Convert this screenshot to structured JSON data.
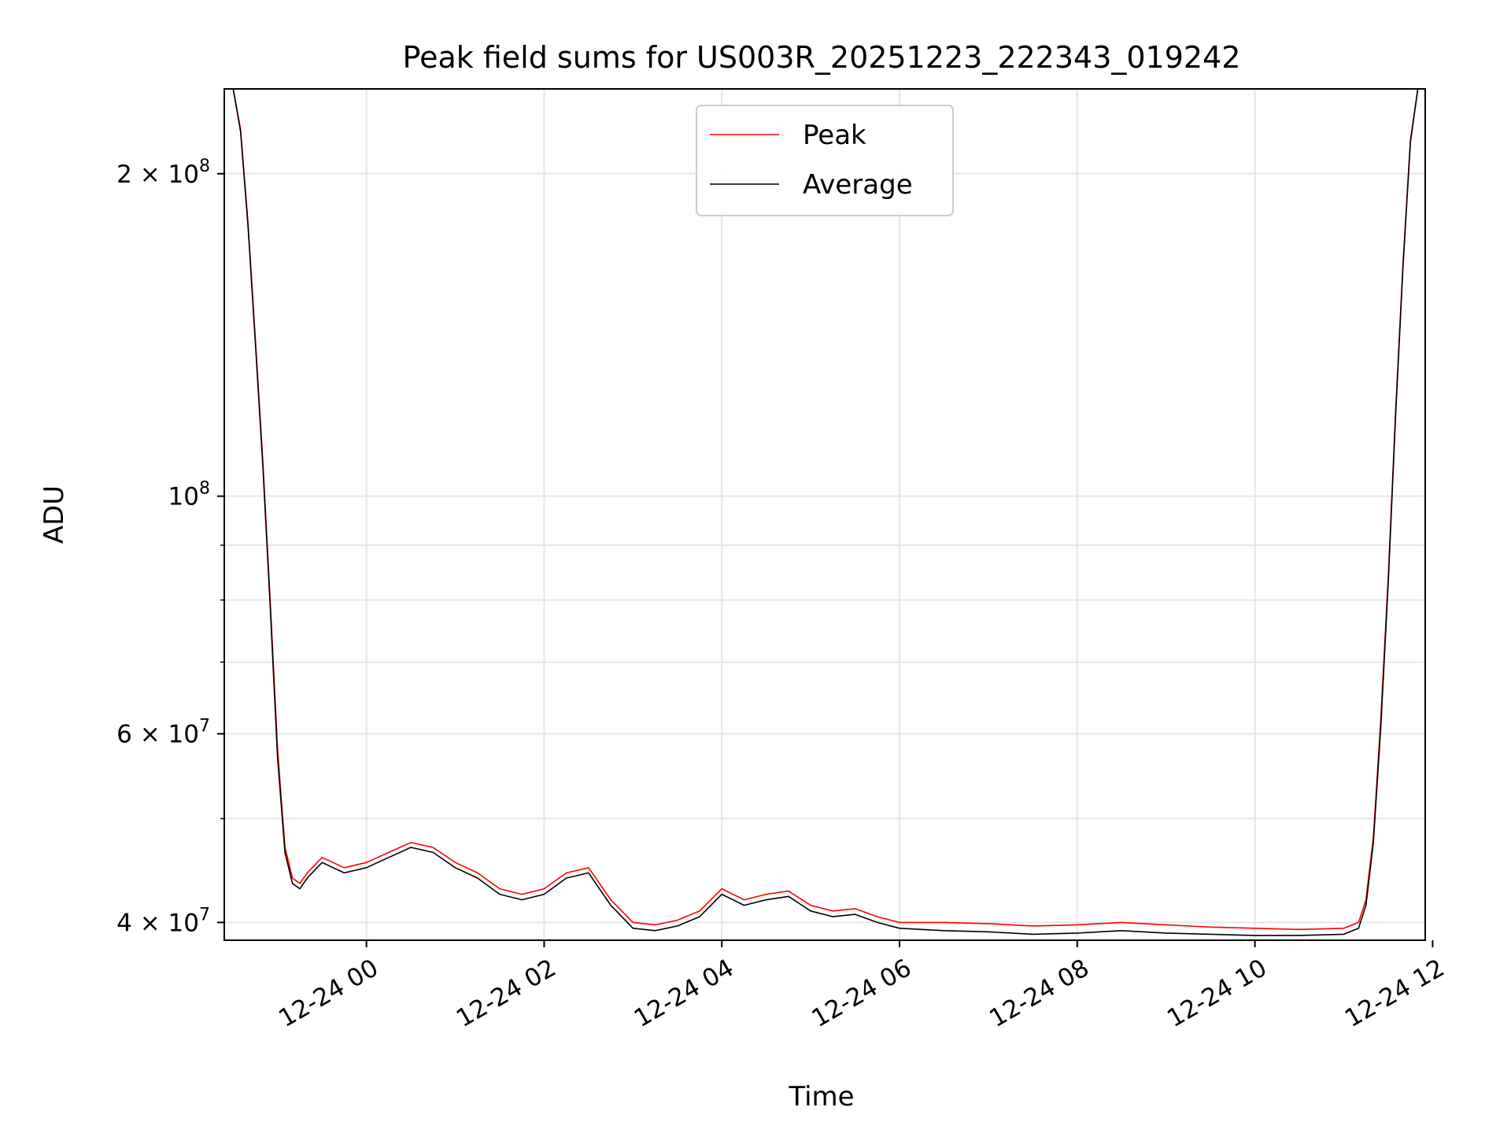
{
  "figure": {
    "title": "Peak field sums for US003R_20251223_222343_019242"
  },
  "chart_data": {
    "type": "line",
    "title": "Peak field sums for US003R_20251223_222343_019242",
    "xlabel": "Time",
    "ylabel": "ADU",
    "x_scale": "time",
    "y_scale": "log",
    "xlim": [
      "2025-12-23 22:24",
      "2025-12-24 11:55"
    ],
    "ylim": [
      38500000,
      240000000
    ],
    "grid": true,
    "legend_position": "upper center",
    "x_ticks": [
      {
        "value": "2025-12-24 00:00",
        "label": "12-24 00"
      },
      {
        "value": "2025-12-24 02:00",
        "label": "12-24 02"
      },
      {
        "value": "2025-12-24 04:00",
        "label": "12-24 04"
      },
      {
        "value": "2025-12-24 06:00",
        "label": "12-24 06"
      },
      {
        "value": "2025-12-24 08:00",
        "label": "12-24 08"
      },
      {
        "value": "2025-12-24 10:00",
        "label": "12-24 10"
      },
      {
        "value": "2025-12-24 12:00",
        "label": "12-24 12"
      }
    ],
    "y_ticks": [
      {
        "value": 40000000,
        "base": "4 × 10",
        "exp": "7"
      },
      {
        "value": 60000000,
        "base": "6 × 10",
        "exp": "7"
      },
      {
        "value": 100000000,
        "base": "10",
        "exp": "8"
      },
      {
        "value": 200000000,
        "base": "2 × 10",
        "exp": "8"
      }
    ],
    "y_minor_ticks": [
      50000000,
      70000000,
      80000000,
      90000000
    ],
    "series": [
      {
        "name": "Peak",
        "color": "#ff0000",
        "x": [
          "2025-12-23 22:24",
          "2025-12-23 22:30",
          "2025-12-23 22:35",
          "2025-12-23 22:40",
          "2025-12-23 22:45",
          "2025-12-23 22:50",
          "2025-12-23 22:55",
          "2025-12-23 23:00",
          "2025-12-23 23:05",
          "2025-12-23 23:10",
          "2025-12-23 23:15",
          "2025-12-23 23:20",
          "2025-12-23 23:30",
          "2025-12-23 23:45",
          "2025-12-24 00:00",
          "2025-12-24 00:15",
          "2025-12-24 00:30",
          "2025-12-24 00:45",
          "2025-12-24 01:00",
          "2025-12-24 01:15",
          "2025-12-24 01:30",
          "2025-12-24 01:45",
          "2025-12-24 02:00",
          "2025-12-24 02:15",
          "2025-12-24 02:30",
          "2025-12-24 02:45",
          "2025-12-24 03:00",
          "2025-12-24 03:15",
          "2025-12-24 03:30",
          "2025-12-24 03:45",
          "2025-12-24 04:00",
          "2025-12-24 04:15",
          "2025-12-24 04:30",
          "2025-12-24 04:45",
          "2025-12-24 05:00",
          "2025-12-24 05:15",
          "2025-12-24 05:30",
          "2025-12-24 05:45",
          "2025-12-24 06:00",
          "2025-12-24 06:30",
          "2025-12-24 07:00",
          "2025-12-24 07:30",
          "2025-12-24 08:00",
          "2025-12-24 08:30",
          "2025-12-24 09:00",
          "2025-12-24 09:30",
          "2025-12-24 10:00",
          "2025-12-24 10:30",
          "2025-12-24 11:00",
          "2025-12-24 11:10",
          "2025-12-24 11:15",
          "2025-12-24 11:20",
          "2025-12-24 11:25",
          "2025-12-24 11:30",
          "2025-12-24 11:35",
          "2025-12-24 11:40",
          "2025-12-24 11:45",
          "2025-12-24 11:50",
          "2025-12-24 11:55"
        ],
        "values": [
          240000000,
          240000000,
          220000000,
          180000000,
          140000000,
          108000000,
          80000000,
          58000000,
          47000000,
          44000000,
          43500000,
          44500000,
          46000000,
          45000000,
          45500000,
          46500000,
          47500000,
          47000000,
          45500000,
          44500000,
          43000000,
          42500000,
          43000000,
          44500000,
          45000000,
          42000000,
          40000000,
          39800000,
          40200000,
          41000000,
          43000000,
          42000000,
          42500000,
          42800000,
          41500000,
          41000000,
          41200000,
          40500000,
          40000000,
          40000000,
          39900000,
          39700000,
          39800000,
          40000000,
          39800000,
          39600000,
          39500000,
          39400000,
          39500000,
          40000000,
          42000000,
          48000000,
          62000000,
          84000000,
          120000000,
          165000000,
          215000000,
          240000000,
          240000000
        ]
      },
      {
        "name": "Average",
        "color": "#000000",
        "x": [
          "2025-12-23 22:24",
          "2025-12-23 22:30",
          "2025-12-23 22:35",
          "2025-12-23 22:40",
          "2025-12-23 22:45",
          "2025-12-23 22:50",
          "2025-12-23 22:55",
          "2025-12-23 23:00",
          "2025-12-23 23:05",
          "2025-12-23 23:10",
          "2025-12-23 23:15",
          "2025-12-23 23:20",
          "2025-12-23 23:30",
          "2025-12-23 23:45",
          "2025-12-24 00:00",
          "2025-12-24 00:15",
          "2025-12-24 00:30",
          "2025-12-24 00:45",
          "2025-12-24 01:00",
          "2025-12-24 01:15",
          "2025-12-24 01:30",
          "2025-12-24 01:45",
          "2025-12-24 02:00",
          "2025-12-24 02:15",
          "2025-12-24 02:30",
          "2025-12-24 02:45",
          "2025-12-24 03:00",
          "2025-12-24 03:15",
          "2025-12-24 03:30",
          "2025-12-24 03:45",
          "2025-12-24 04:00",
          "2025-12-24 04:15",
          "2025-12-24 04:30",
          "2025-12-24 04:45",
          "2025-12-24 05:00",
          "2025-12-24 05:15",
          "2025-12-24 05:30",
          "2025-12-24 05:45",
          "2025-12-24 06:00",
          "2025-12-24 06:30",
          "2025-12-24 07:00",
          "2025-12-24 07:30",
          "2025-12-24 08:00",
          "2025-12-24 08:30",
          "2025-12-24 09:00",
          "2025-12-24 09:30",
          "2025-12-24 10:00",
          "2025-12-24 10:30",
          "2025-12-24 11:00",
          "2025-12-24 11:10",
          "2025-12-24 11:15",
          "2025-12-24 11:20",
          "2025-12-24 11:25",
          "2025-12-24 11:30",
          "2025-12-24 11:35",
          "2025-12-24 11:40",
          "2025-12-24 11:45",
          "2025-12-24 11:50",
          "2025-12-24 11:55"
        ],
        "values": [
          240000000,
          240000000,
          219000000,
          179000000,
          139000000,
          107000000,
          79000000,
          57000000,
          46500000,
          43500000,
          43000000,
          44000000,
          45500000,
          44500000,
          45000000,
          46000000,
          47000000,
          46500000,
          45000000,
          44000000,
          42500000,
          42000000,
          42500000,
          44000000,
          44500000,
          41500000,
          39500000,
          39300000,
          39700000,
          40500000,
          42500000,
          41500000,
          42000000,
          42300000,
          41000000,
          40500000,
          40700000,
          40000000,
          39500000,
          39300000,
          39200000,
          39000000,
          39100000,
          39300000,
          39100000,
          39000000,
          38900000,
          38900000,
          39000000,
          39500000,
          41500000,
          47500000,
          61000000,
          83000000,
          119000000,
          164000000,
          214000000,
          240000000,
          240000000
        ]
      }
    ]
  }
}
